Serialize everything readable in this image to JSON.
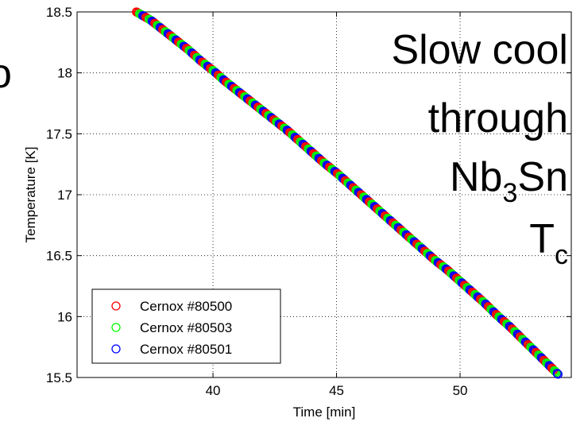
{
  "chart_data": {
    "type": "scatter",
    "xlabel": "Time [min]",
    "ylabel": "Temperature [K]",
    "xlim": [
      34.5,
      54.5
    ],
    "ylim": [
      15.5,
      18.5
    ],
    "xticks": [
      40,
      45,
      50
    ],
    "yticks": [
      15.5,
      16,
      16.5,
      17,
      17.5,
      18,
      18.5
    ],
    "xtick_labels": [
      "40",
      "45",
      "50"
    ],
    "ytick_labels": [
      "15.5",
      "16",
      "16.5",
      "17",
      "17.5",
      "18",
      "18.5"
    ],
    "grid": true,
    "legend_position": "bottom-left",
    "series": [
      {
        "name": "Cernox #80500",
        "color": "#ff0000"
      },
      {
        "name": "Cernox #80503",
        "color": "#00ff00"
      },
      {
        "name": "Cernox #80501",
        "color": "#0000ff"
      }
    ],
    "x": [
      36.9,
      37.5,
      38.0,
      38.5,
      39.0,
      39.5,
      40.0,
      40.5,
      41.0,
      41.5,
      42.0,
      42.5,
      43.0,
      43.5,
      44.0,
      44.5,
      45.0,
      45.5,
      46.0,
      46.5,
      47.0,
      47.5,
      48.0,
      48.5,
      49.0,
      49.5,
      50.0,
      50.5,
      51.0,
      51.5,
      52.0,
      52.5,
      53.0,
      53.5,
      54.0
    ],
    "y": [
      18.5,
      18.43,
      18.35,
      18.27,
      18.19,
      18.1,
      18.02,
      17.93,
      17.85,
      17.77,
      17.69,
      17.61,
      17.53,
      17.44,
      17.35,
      17.26,
      17.18,
      17.09,
      17.0,
      16.91,
      16.82,
      16.73,
      16.64,
      16.55,
      16.46,
      16.38,
      16.29,
      16.2,
      16.11,
      16.01,
      15.92,
      15.82,
      15.72,
      15.62,
      15.52
    ],
    "annotation": {
      "line1": "Slow cool",
      "line2": "through",
      "line3_main": "Nb",
      "line3_sub": "3",
      "line3_tail": "Sn",
      "line4_main": "T",
      "line4_sub": "c"
    }
  }
}
